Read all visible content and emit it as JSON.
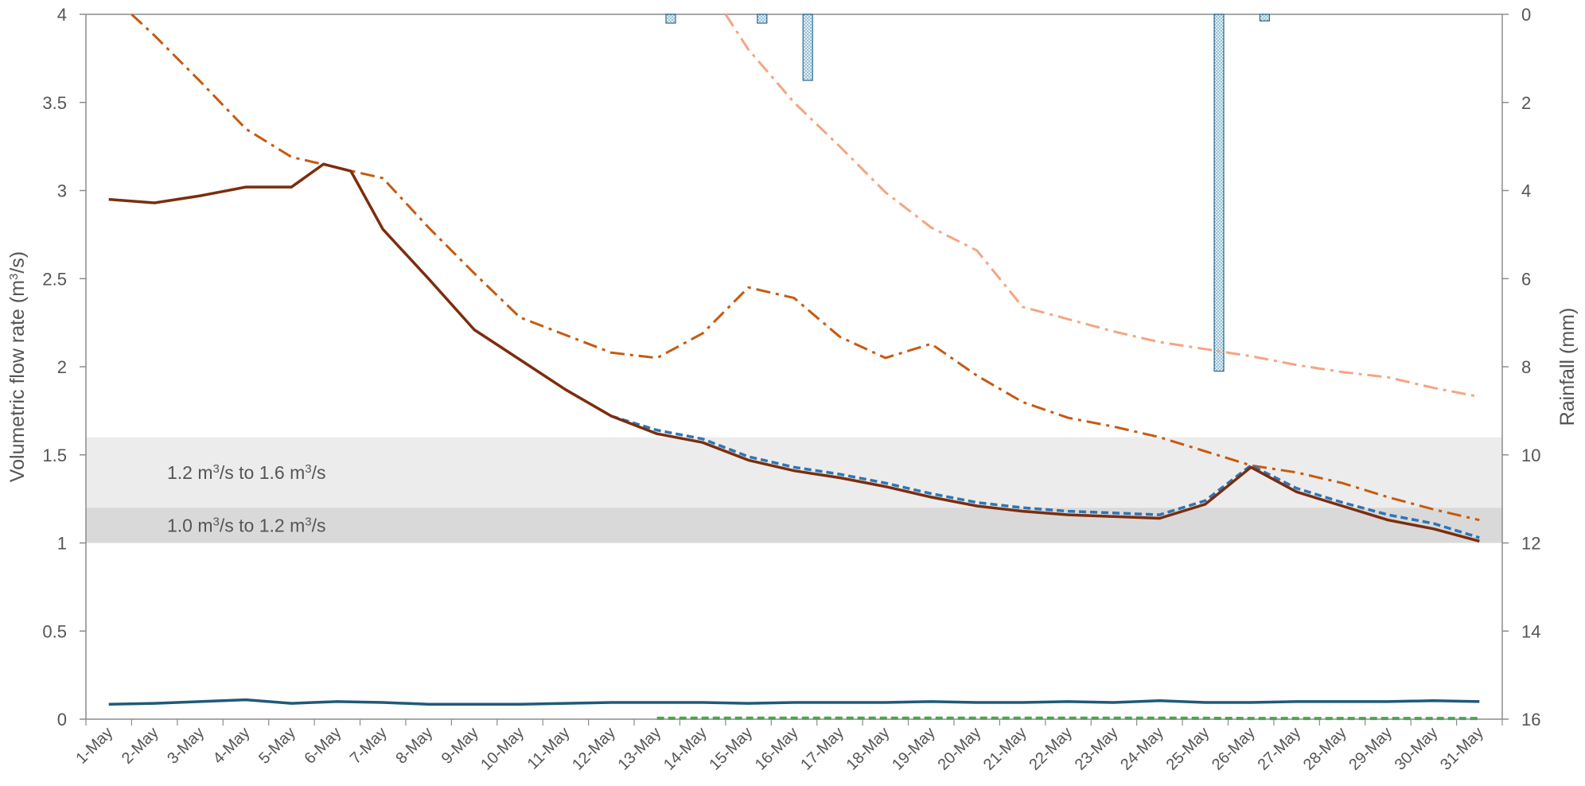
{
  "chart_data": {
    "type": "line",
    "categories": [
      "1-May",
      "2-May",
      "3-May",
      "4-May",
      "5-May",
      "6-May",
      "7-May",
      "8-May",
      "9-May",
      "10-May",
      "11-May",
      "12-May",
      "13-May",
      "14-May",
      "15-May",
      "16-May",
      "17-May",
      "18-May",
      "19-May",
      "20-May",
      "21-May",
      "22-May",
      "23-May",
      "24-May",
      "25-May",
      "26-May",
      "27-May",
      "28-May",
      "29-May",
      "30-May",
      "31-May"
    ],
    "left_axis": {
      "title": "Volumetric flow rate (m³/s)",
      "ylim": [
        0,
        4
      ],
      "ticks": [
        "0",
        "0.5",
        "1",
        "1.5",
        "2",
        "2.5",
        "3",
        "3.5",
        "4"
      ]
    },
    "right_axis": {
      "title": "Rainfall (mm)",
      "ylim": [
        0,
        16
      ],
      "reversed": true,
      "ticks": [
        "0",
        "2",
        "4",
        "6",
        "8",
        "10",
        "12",
        "14",
        "16"
      ]
    },
    "bands": [
      {
        "label": "1.2 m³/s to 1.6 m³/s",
        "from": 1.2,
        "to": 1.6,
        "color": "#ececec"
      },
      {
        "label": "1.0 m³/s to 1.2 m³/s",
        "from": 1.0,
        "to": 1.2,
        "color": "#d9d9d9"
      }
    ],
    "series": [
      {
        "style": "solid",
        "color": "#7b2d0e",
        "width": 3.5,
        "x": [
          1,
          2,
          3,
          4,
          5,
          5.7,
          6.3,
          7,
          8,
          9,
          10,
          11,
          12,
          13,
          14,
          15,
          16,
          17,
          18,
          19,
          20,
          21,
          22,
          23,
          24,
          25,
          26,
          27,
          28,
          29,
          30,
          31
        ],
        "values": [
          2.95,
          2.93,
          2.97,
          3.02,
          3.02,
          3.15,
          3.11,
          2.78,
          2.5,
          2.21,
          2.04,
          1.87,
          1.72,
          1.62,
          1.57,
          1.47,
          1.41,
          1.37,
          1.32,
          1.26,
          1.21,
          1.18,
          1.16,
          1.15,
          1.14,
          1.22,
          1.43,
          1.29,
          1.21,
          1.13,
          1.08,
          1.01
        ]
      },
      {
        "style": "dashed",
        "color": "#2e75b6",
        "width": 3.5,
        "x": [
          12,
          13,
          14,
          15,
          16,
          17,
          18,
          19,
          20,
          21,
          22,
          23,
          24,
          25,
          26,
          27,
          28,
          29,
          30,
          31
        ],
        "values": [
          1.72,
          1.64,
          1.59,
          1.49,
          1.43,
          1.39,
          1.34,
          1.28,
          1.23,
          1.2,
          1.18,
          1.17,
          1.16,
          1.24,
          1.44,
          1.31,
          1.23,
          1.16,
          1.11,
          1.03
        ]
      },
      {
        "style": "dashdot",
        "color": "#c55a11",
        "width": 3,
        "x": [
          1.5,
          2,
          3,
          4,
          5,
          6,
          7,
          8,
          9,
          10,
          11,
          12,
          13,
          14,
          15,
          16,
          17,
          18,
          19,
          20,
          21,
          22,
          23,
          24,
          25,
          26,
          27,
          28,
          29,
          30,
          31
        ],
        "values": [
          4.0,
          3.88,
          3.62,
          3.35,
          3.19,
          3.13,
          3.07,
          2.79,
          2.53,
          2.28,
          2.18,
          2.08,
          2.05,
          2.19,
          2.45,
          2.39,
          2.17,
          2.05,
          2.13,
          1.95,
          1.8,
          1.71,
          1.66,
          1.6,
          1.52,
          1.44,
          1.4,
          1.34,
          1.26,
          1.19,
          1.13
        ]
      },
      {
        "style": "dashdot",
        "color": "#f4a582",
        "width": 3,
        "x": [
          14.5,
          15,
          16,
          17,
          18,
          19,
          20,
          21,
          22,
          23,
          24,
          25,
          26,
          27,
          28,
          29,
          30,
          31
        ],
        "values": [
          4.0,
          3.8,
          3.5,
          3.25,
          2.99,
          2.79,
          2.66,
          2.34,
          2.27,
          2.2,
          2.14,
          2.1,
          2.06,
          2.01,
          1.97,
          1.94,
          1.88,
          1.83
        ]
      },
      {
        "style": "solid",
        "color": "#1f5a7a",
        "width": 3.5,
        "x": [
          1,
          2,
          3,
          4,
          5,
          6,
          7,
          8,
          9,
          10,
          11,
          12,
          13,
          14,
          15,
          16,
          17,
          18,
          19,
          20,
          21,
          22,
          23,
          24,
          25,
          26,
          27,
          28,
          29,
          30,
          31
        ],
        "values": [
          0.085,
          0.09,
          0.1,
          0.11,
          0.09,
          0.1,
          0.095,
          0.085,
          0.085,
          0.085,
          0.09,
          0.095,
          0.095,
          0.095,
          0.09,
          0.095,
          0.095,
          0.095,
          0.1,
          0.095,
          0.095,
          0.1,
          0.095,
          0.105,
          0.095,
          0.095,
          0.1,
          0.1,
          0.1,
          0.105,
          0.1
        ]
      },
      {
        "style": "dashed",
        "color": "#4ea24e",
        "width": 4,
        "x": [
          13,
          14,
          15,
          16,
          17,
          18,
          19,
          20,
          21,
          22,
          23,
          24,
          25,
          26,
          27,
          28,
          29,
          30,
          31
        ],
        "values": [
          0.005,
          0.006,
          0.006,
          0.006,
          0.006,
          0.006,
          0.006,
          0.006,
          0.006,
          0.006,
          0.006,
          0.006,
          0.005,
          0.004,
          0.004,
          0.004,
          0.004,
          0.004,
          0.004
        ]
      }
    ],
    "rainfall": {
      "axis": "right",
      "x": [
        13.3,
        15.3,
        16.3,
        25.3,
        26.3
      ],
      "values": [
        0.2,
        0.2,
        1.5,
        8.1,
        0.15
      ]
    }
  }
}
